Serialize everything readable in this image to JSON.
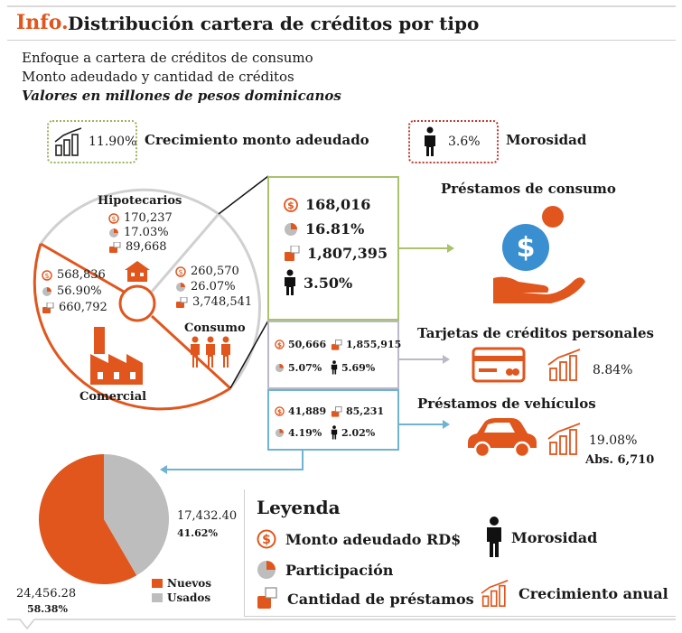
{
  "header": {
    "brand": "Info.",
    "title": "Distribución cartera de créditos por tipo",
    "subtitle1": "Enfoque a cartera de créditos de consumo",
    "subtitle2": "Monto adeudado y cantidad de créditos",
    "subtitle3": "Valores en millones de pesos dominicanos"
  },
  "kpis": {
    "growth_value": "11.90%",
    "growth_label": "Crecimiento monto adeudado",
    "delinquency_value": "3.6%",
    "delinquency_label": "Morosidad"
  },
  "segments": {
    "hipotecarios": {
      "label": "Hipotecarios",
      "monto": "170,237",
      "part": "17.03%",
      "cantidad": "89,668"
    },
    "consumo": {
      "label": "Consumo",
      "monto": "260,570",
      "part": "26.07%",
      "cantidad": "3,748,541"
    },
    "comercial": {
      "label": "Comercial",
      "monto": "568,836",
      "part": "56.90%",
      "cantidad": "660,792"
    }
  },
  "consumer_loans": {
    "monto": "168,016",
    "part": "16.81%",
    "cantidad": "1,807,395",
    "morosidad": "3.50%",
    "label": "Préstamos de consumo"
  },
  "credit_cards": {
    "monto": "50,666",
    "cantidad": "1,855,915",
    "part": "5.07%",
    "morosidad": "5.69%",
    "label": "Tarjetas de créditos personales",
    "growth": "8.84%"
  },
  "vehicle_loans": {
    "monto": "41,889",
    "cantidad": "85,231",
    "part": "4.19%",
    "morosidad": "2.02%",
    "label": "Préstamos de vehículos",
    "growth": "19.08%",
    "abs": "Abs. 6,710"
  },
  "pie": {
    "usados_value": "17,432.40",
    "usados_pct": "41.62%",
    "nuevos_value": "24,456.28",
    "nuevos_pct": "58.38%",
    "legend_nuevos": "Nuevos",
    "legend_usados": "Usados"
  },
  "legend": {
    "title": "Leyenda",
    "monto": "Monto adeudado RD$",
    "participacion": "Participación",
    "cantidad": "Cantidad de préstamos",
    "morosidad": "Morosidad",
    "crecimiento": "Crecimiento anual"
  },
  "colors": {
    "accent": "#e0561d",
    "gray": "#bdbdbd",
    "green": "#a9c36b",
    "blue": "#6fb3d2",
    "lilac": "#b9b9c9"
  },
  "chart_data": {
    "type": "pie",
    "categories": [
      "Nuevos",
      "Usados"
    ],
    "values": [
      24456.28,
      17432.4
    ],
    "percentages": [
      58.38,
      41.62
    ]
  }
}
